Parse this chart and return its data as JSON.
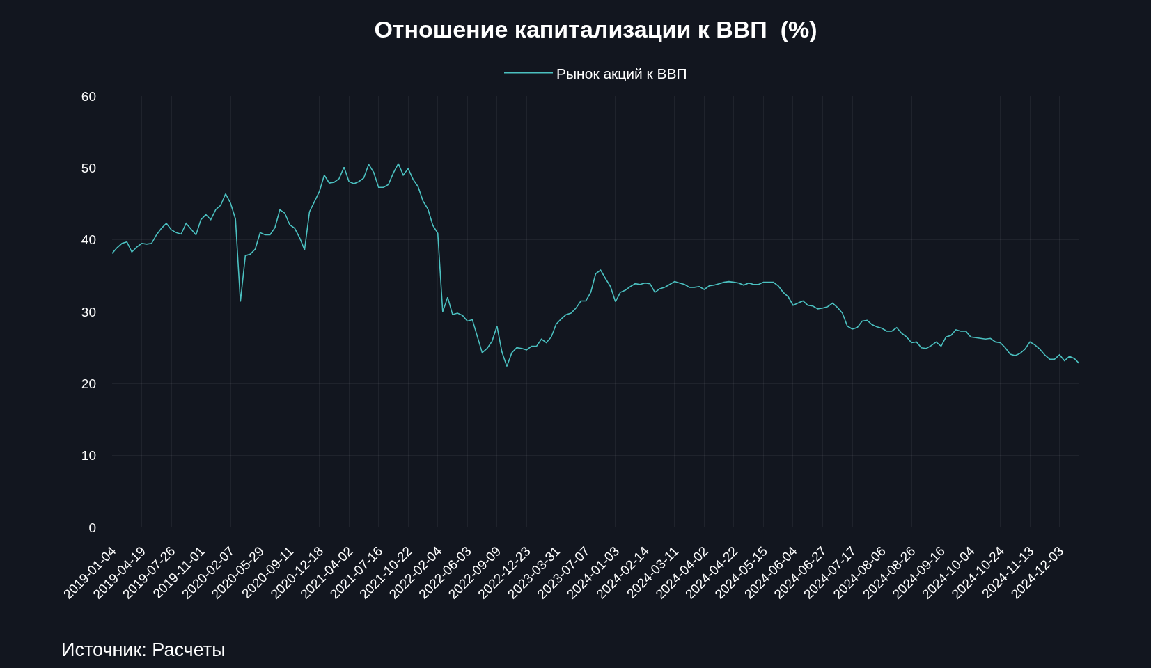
{
  "chart_data": {
    "type": "line",
    "title": "Отношение капитализации к ВВП  (%)",
    "categories": [
      "2019-01-04",
      null,
      null,
      null,
      null,
      null,
      "2019-04-19",
      null,
      null,
      null,
      null,
      null,
      "2019-07-26",
      null,
      null,
      null,
      null,
      null,
      "2019-11-01",
      null,
      null,
      null,
      null,
      null,
      "2020-02-07",
      null,
      null,
      null,
      null,
      null,
      "2020-05-29",
      null,
      null,
      null,
      null,
      null,
      "2020-09-11",
      null,
      null,
      null,
      null,
      null,
      "2020-12-18",
      null,
      null,
      null,
      null,
      null,
      "2021-04-02",
      null,
      null,
      null,
      null,
      null,
      "2021-07-16",
      null,
      null,
      null,
      null,
      null,
      "2021-10-22",
      null,
      null,
      null,
      null,
      null,
      "2022-02-04",
      null,
      null,
      null,
      null,
      null,
      "2022-06-03",
      null,
      null,
      null,
      null,
      null,
      "2022-09-09",
      null,
      null,
      null,
      null,
      null,
      "2022-12-23",
      null,
      null,
      null,
      null,
      null,
      "2023-03-31",
      null,
      null,
      null,
      null,
      null,
      "2023-07-07",
      null,
      null,
      null,
      null,
      null,
      "2024-01-03",
      null,
      null,
      null,
      null,
      null,
      "2024-02-14",
      null,
      null,
      null,
      null,
      null,
      "2024-03-11",
      null,
      null,
      null,
      null,
      null,
      "2024-04-02",
      null,
      null,
      null,
      null,
      null,
      "2024-04-22",
      null,
      null,
      null,
      null,
      null,
      "2024-05-15",
      null,
      null,
      null,
      null,
      null,
      "2024-06-04",
      null,
      null,
      null,
      null,
      null,
      "2024-06-27",
      null,
      null,
      null,
      null,
      null,
      "2024-07-17",
      null,
      null,
      null,
      null,
      null,
      "2024-08-06",
      null,
      null,
      null,
      null,
      null,
      "2024-08-26",
      null,
      null,
      null,
      null,
      null,
      "2024-09-16",
      null,
      null,
      null,
      null,
      null,
      "2024-10-04",
      null,
      null,
      null,
      null,
      null,
      "2024-10-24",
      null,
      null,
      null,
      null,
      null,
      "2024-11-13",
      null,
      null,
      null,
      null,
      null,
      "2024-12-03",
      null,
      null,
      null,
      null
    ],
    "series": [
      {
        "name": "Рынок акций к ВВП",
        "color": "#4bc0c0",
        "values": [
          38.1,
          38.9,
          39.5,
          39.7,
          38.3,
          39.0,
          39.5,
          39.4,
          39.5,
          40.7,
          41.6,
          42.3,
          41.4,
          41.0,
          40.8,
          42.3,
          41.5,
          40.7,
          42.8,
          43.5,
          42.8,
          44.2,
          44.8,
          46.4,
          45.1,
          42.9,
          31.4,
          37.8,
          38.0,
          38.7,
          41.0,
          40.7,
          40.7,
          41.7,
          44.2,
          43.7,
          42.1,
          41.6,
          40.3,
          38.6,
          43.9,
          45.3,
          46.7,
          49.0,
          47.9,
          48.0,
          48.5,
          50.1,
          48.1,
          47.8,
          48.1,
          48.6,
          50.5,
          49.4,
          47.3,
          47.3,
          47.7,
          49.3,
          50.6,
          49.0,
          49.9,
          48.4,
          47.4,
          45.4,
          44.3,
          42.0,
          40.9,
          30.0,
          32.0,
          29.6,
          29.8,
          29.5,
          28.7,
          28.9,
          26.6,
          24.3,
          24.9,
          25.9,
          28.0,
          24.4,
          22.4,
          24.3,
          25.0,
          24.9,
          24.7,
          25.2,
          25.2,
          26.2,
          25.7,
          26.5,
          28.3,
          29.0,
          29.6,
          29.8,
          30.5,
          31.5,
          31.5,
          32.7,
          35.3,
          35.8,
          34.6,
          33.5,
          31.4,
          32.7,
          33.0,
          33.5,
          33.9,
          33.8,
          34.0,
          33.9,
          32.7,
          33.2,
          33.4,
          33.8,
          34.2,
          34.0,
          33.8,
          33.4,
          33.4,
          33.5,
          33.1,
          33.6,
          33.7,
          33.9,
          34.1,
          34.2,
          34.1,
          34.0,
          33.7,
          34.0,
          33.8,
          33.8,
          34.1,
          34.1,
          34.1,
          33.6,
          32.7,
          32.1,
          30.9,
          31.2,
          31.5,
          30.9,
          30.8,
          30.4,
          30.5,
          30.7,
          31.2,
          30.6,
          29.8,
          28.0,
          27.6,
          27.8,
          28.7,
          28.8,
          28.2,
          27.9,
          27.7,
          27.3,
          27.3,
          27.8,
          27.0,
          26.5,
          25.7,
          25.8,
          25.0,
          24.9,
          25.3,
          25.8,
          25.2,
          26.5,
          26.7,
          27.5,
          27.3,
          27.3,
          26.5,
          26.4,
          26.3,
          26.2,
          26.3,
          25.8,
          25.7,
          25.0,
          24.1,
          23.9,
          24.2,
          24.8,
          25.8,
          25.4,
          24.8,
          24.0,
          23.4,
          23.4,
          24.0,
          23.2,
          23.8,
          23.5,
          22.8
        ]
      }
    ],
    "ylim": [
      0,
      60
    ],
    "yticks": [
      0,
      10,
      20,
      30,
      40,
      50,
      60
    ],
    "grid": true,
    "legend": "top",
    "line_style": "solid",
    "annotations": [
      "Источник: Расчеты"
    ]
  }
}
